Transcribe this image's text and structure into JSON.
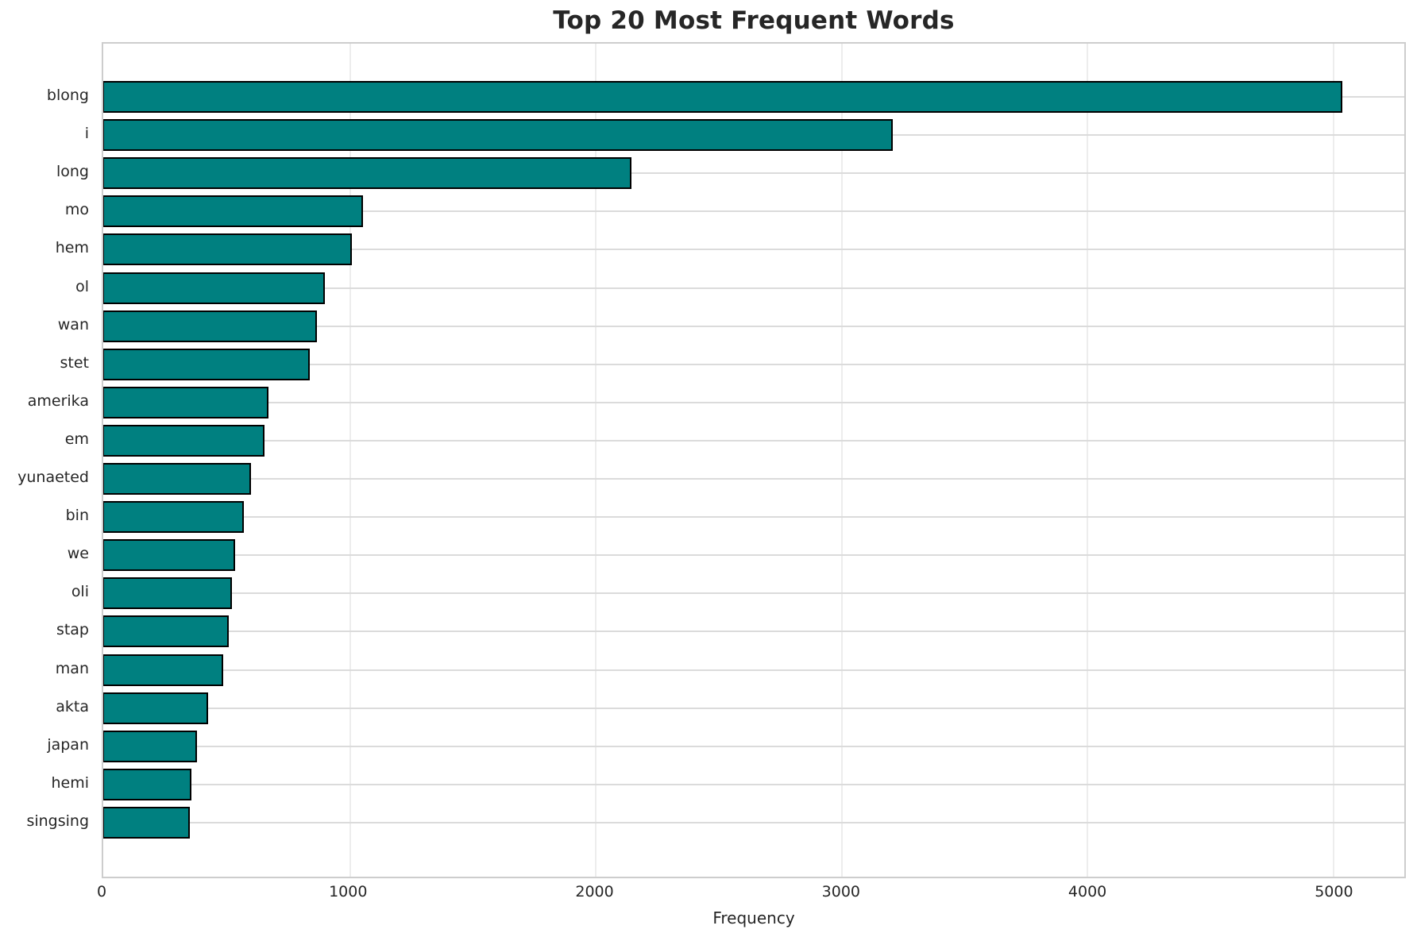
{
  "chart_data": {
    "type": "bar",
    "orientation": "horizontal",
    "title": "Top 20 Most Frequent Words",
    "xlabel": "Frequency",
    "ylabel": "",
    "categories": [
      "blong",
      "i",
      "long",
      "mo",
      "hem",
      "ol",
      "wan",
      "stet",
      "amerika",
      "em",
      "yunaeted",
      "bin",
      "we",
      "oli",
      "stap",
      "man",
      "akta",
      "japan",
      "hemi",
      "singsing"
    ],
    "values": [
      5040,
      3210,
      2150,
      1055,
      1010,
      900,
      870,
      840,
      672,
      655,
      600,
      572,
      535,
      523,
      512,
      487,
      427,
      382,
      360,
      352
    ],
    "xticks": [
      0,
      1000,
      2000,
      3000,
      4000,
      5000
    ],
    "xlim": [
      0,
      5292
    ],
    "grid": true,
    "legend_position": "none",
    "colors": {
      "bar_fill": "#008080",
      "bar_edge": "#000000",
      "grid_horizontal": "#dbdbdb",
      "grid_vertical": "#ededed",
      "spine": "#cdcdcd",
      "text": "#262626",
      "background": "#ffffff"
    }
  }
}
